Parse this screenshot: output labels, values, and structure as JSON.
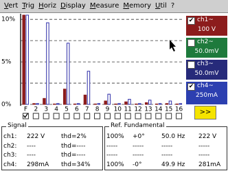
{
  "menu": [
    "Vert",
    "Trig",
    "Horiz",
    "Display",
    "Measure",
    "Memory",
    "Util",
    "?"
  ],
  "chart_data": {
    "type": "bar",
    "categories": [
      "F",
      "2",
      "3",
      "4",
      "5",
      "6",
      "7",
      "8",
      "9",
      "10",
      "11",
      "12",
      "13",
      "14",
      "15",
      "16"
    ],
    "series": [
      {
        "name": "ch1",
        "color": "#8c1c1c",
        "values": [
          10.5,
          0.1,
          0.7,
          0.05,
          1.8,
          0.05,
          1.1,
          0.05,
          0.4,
          0.05,
          0.3,
          0.05,
          0.2,
          0.05,
          0.1,
          0.05
        ]
      },
      {
        "name": "ch4",
        "color": "#2c2ca8",
        "values": [
          10.5,
          0.1,
          9.6,
          0.1,
          7.2,
          0.1,
          3.9,
          0.1,
          1.2,
          0.1,
          0.6,
          0.1,
          0.5,
          0.1,
          0.4,
          0.1
        ]
      }
    ],
    "ylim": [
      0,
      10.5
    ],
    "yticks": [
      {
        "value": 0,
        "label": "0%"
      },
      {
        "value": 5,
        "label": "5%"
      },
      {
        "value": 10,
        "label": "10%"
      }
    ],
    "minor_yticks": [
      2.5,
      7.5
    ],
    "grid": true
  },
  "channels": [
    {
      "name": "ch1~",
      "scale": "100 V",
      "checked": true,
      "color": "#8c1c1c"
    },
    {
      "name": "ch2~",
      "scale": "50.0mV",
      "checked": false,
      "color": "#1e7a3c"
    },
    {
      "name": "ch3~",
      "scale": "50.0mV",
      "checked": false,
      "color": "#262a7a"
    },
    {
      "name": "ch4~",
      "scale": "250mA",
      "checked": true,
      "color": "#2c3fb0"
    }
  ],
  "more_button": ">>",
  "signal": {
    "title": "Signal",
    "rows": [
      [
        "ch1:",
        "222 V",
        "thd=2%"
      ],
      [
        "ch2:",
        "----",
        "thd=----"
      ],
      [
        "ch3:",
        "----",
        "thd=----"
      ],
      [
        "ch4:",
        "298mA",
        "thd=34%"
      ]
    ]
  },
  "reference": {
    "title": "Ref. Fundamental",
    "rows": [
      [
        "100%",
        "+0°",
        "50.0 Hz",
        "222 V"
      ],
      [
        "-----",
        "-----",
        "-----",
        "-----"
      ],
      [
        "-----",
        "-----",
        "-----",
        "-----"
      ],
      [
        "100%",
        "-0°",
        "49.9 Hz",
        "281mA"
      ]
    ]
  }
}
